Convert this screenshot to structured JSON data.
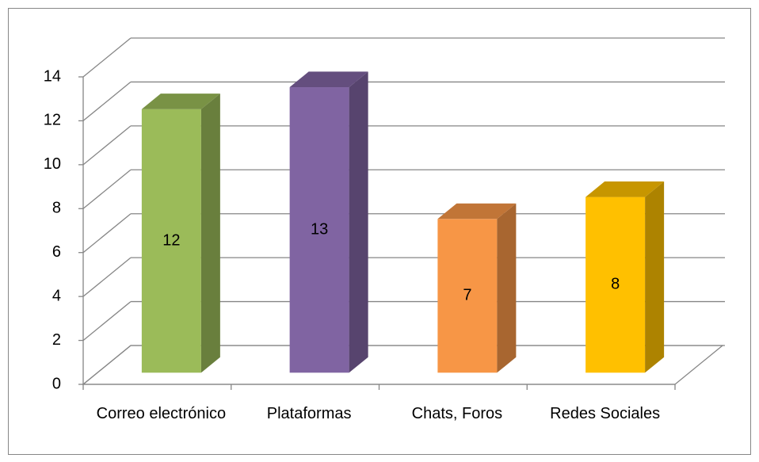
{
  "chart_data": {
    "type": "bar3d",
    "categories": [
      "Correo electrónico",
      "Plataformas",
      "Chats, Foros",
      "Redes Sociales"
    ],
    "values": [
      12,
      13,
      7,
      8
    ],
    "colors": [
      "#9bbb59",
      "#8064a2",
      "#f79646",
      "#ffc000"
    ],
    "ylim": [
      0,
      14
    ],
    "yticks": [
      0,
      2,
      4,
      6,
      8,
      10,
      12,
      14
    ],
    "grid": true
  }
}
